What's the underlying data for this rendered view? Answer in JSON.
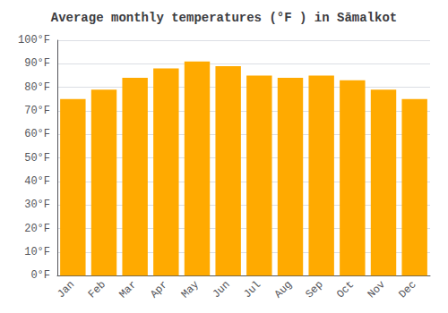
{
  "chart_data": {
    "type": "bar",
    "title": "Average monthly temperatures (°F ) in Sāmalkot",
    "categories": [
      "Jan",
      "Feb",
      "Mar",
      "Apr",
      "May",
      "Jun",
      "Jul",
      "Aug",
      "Sep",
      "Oct",
      "Nov",
      "Dec"
    ],
    "values": [
      75,
      79,
      84,
      88,
      91,
      89,
      85,
      84,
      85,
      83,
      79,
      75
    ],
    "color": "#FFAA00",
    "ylim": [
      0,
      100
    ],
    "yticks": [
      {
        "value": 0,
        "label": "0°F"
      },
      {
        "value": 10,
        "label": "10°F"
      },
      {
        "value": 20,
        "label": "20°F"
      },
      {
        "value": 30,
        "label": "30°F"
      },
      {
        "value": 40,
        "label": "40°F"
      },
      {
        "value": 50,
        "label": "50°F"
      },
      {
        "value": 60,
        "label": "60°F"
      },
      {
        "value": 70,
        "label": "70°F"
      },
      {
        "value": 80,
        "label": "80°F"
      },
      {
        "value": 90,
        "label": "90°F"
      },
      {
        "value": 100,
        "label": "100°F"
      }
    ],
    "grid": true
  }
}
